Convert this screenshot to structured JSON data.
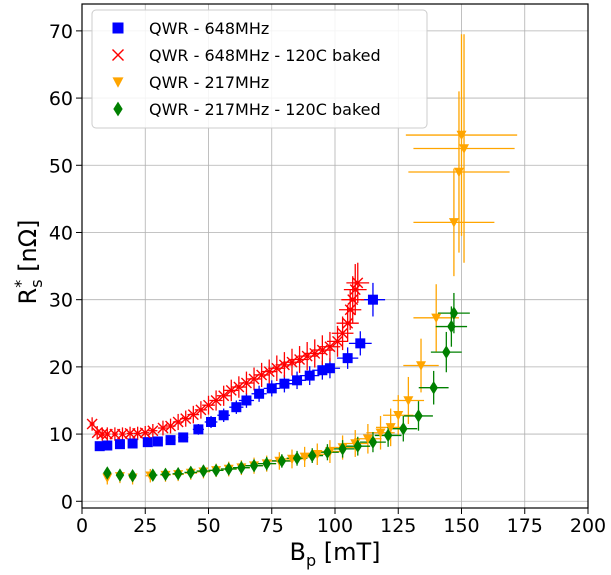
{
  "chart_data": {
    "type": "scatter",
    "title": "",
    "xlabel": "B",
    "xlabel_sub": "p",
    "xlabel_unit": " [mT]",
    "ylabel": "R",
    "ylabel_sup": "*",
    "ylabel_sub": "s",
    "ylabel_unit": " [nΩ]",
    "xlim": [
      0,
      200
    ],
    "ylim": [
      -1,
      74
    ],
    "xticks": [
      0,
      25,
      50,
      75,
      100,
      125,
      150,
      175,
      200
    ],
    "yticks": [
      0,
      10,
      20,
      30,
      40,
      50,
      60,
      70
    ],
    "grid": true,
    "legend_position": "top-left",
    "series": [
      {
        "name": "QWR - 648MHz",
        "color": "#0000ff",
        "marker": "square",
        "points": [
          {
            "x": 7,
            "y": 8.2,
            "xerr": 1.2,
            "yerr": 0.6
          },
          {
            "x": 10,
            "y": 8.3,
            "xerr": 1.2,
            "yerr": 0.6
          },
          {
            "x": 15,
            "y": 8.5,
            "xerr": 1.5,
            "yerr": 0.6
          },
          {
            "x": 20,
            "y": 8.6,
            "xerr": 1.5,
            "yerr": 0.6
          },
          {
            "x": 26,
            "y": 8.8,
            "xerr": 1.8,
            "yerr": 0.6
          },
          {
            "x": 30,
            "y": 8.9,
            "xerr": 1.8,
            "yerr": 0.6
          },
          {
            "x": 35,
            "y": 9.1,
            "xerr": 2,
            "yerr": 0.7
          },
          {
            "x": 40,
            "y": 9.5,
            "xerr": 2,
            "yerr": 0.7
          },
          {
            "x": 46,
            "y": 10.7,
            "xerr": 2.2,
            "yerr": 0.8
          },
          {
            "x": 51,
            "y": 11.8,
            "xerr": 2.5,
            "yerr": 0.9
          },
          {
            "x": 56,
            "y": 12.8,
            "xerr": 2.5,
            "yerr": 1
          },
          {
            "x": 61,
            "y": 14,
            "xerr": 2.8,
            "yerr": 1
          },
          {
            "x": 65,
            "y": 15,
            "xerr": 3,
            "yerr": 1.1
          },
          {
            "x": 70,
            "y": 16,
            "xerr": 3,
            "yerr": 1.2
          },
          {
            "x": 75,
            "y": 16.8,
            "xerr": 3.2,
            "yerr": 1.2
          },
          {
            "x": 80,
            "y": 17.5,
            "xerr": 3.5,
            "yerr": 1.3
          },
          {
            "x": 85,
            "y": 18,
            "xerr": 3.5,
            "yerr": 1.3
          },
          {
            "x": 90,
            "y": 18.7,
            "xerr": 3.8,
            "yerr": 1.4
          },
          {
            "x": 95,
            "y": 19.5,
            "xerr": 4,
            "yerr": 1.4
          },
          {
            "x": 98,
            "y": 19.8,
            "xerr": 4,
            "yerr": 1.5
          },
          {
            "x": 105,
            "y": 21.3,
            "xerr": 4.2,
            "yerr": 1.6
          },
          {
            "x": 110,
            "y": 23.5,
            "xerr": 4.5,
            "yerr": 1.8
          },
          {
            "x": 115,
            "y": 30,
            "xerr": 4.8,
            "yerr": 2.5
          }
        ]
      },
      {
        "name": "QWR - 648MHz  - 120C baked",
        "color": "#ff0000",
        "marker": "x",
        "points": [
          {
            "x": 4,
            "y": 11.5,
            "xerr": 1,
            "yerr": 1
          },
          {
            "x": 6,
            "y": 10.2,
            "xerr": 1,
            "yerr": 1
          },
          {
            "x": 8,
            "y": 10,
            "xerr": 1,
            "yerr": 1
          },
          {
            "x": 10,
            "y": 10,
            "xerr": 1.2,
            "yerr": 1
          },
          {
            "x": 13,
            "y": 10,
            "xerr": 1.2,
            "yerr": 1
          },
          {
            "x": 16,
            "y": 10,
            "xerr": 1.3,
            "yerr": 1
          },
          {
            "x": 19,
            "y": 10.1,
            "xerr": 1.4,
            "yerr": 1
          },
          {
            "x": 22,
            "y": 10.1,
            "xerr": 1.5,
            "yerr": 1
          },
          {
            "x": 25,
            "y": 10.2,
            "xerr": 1.6,
            "yerr": 1
          },
          {
            "x": 28,
            "y": 10.5,
            "xerr": 1.8,
            "yerr": 1
          },
          {
            "x": 32,
            "y": 10.9,
            "xerr": 2,
            "yerr": 1.1
          },
          {
            "x": 35,
            "y": 11.2,
            "xerr": 2,
            "yerr": 1.1
          },
          {
            "x": 38,
            "y": 11.8,
            "xerr": 2.1,
            "yerr": 1.2
          },
          {
            "x": 41,
            "y": 12.3,
            "xerr": 2.2,
            "yerr": 1.2
          },
          {
            "x": 44,
            "y": 12.9,
            "xerr": 2.3,
            "yerr": 1.3
          },
          {
            "x": 47,
            "y": 13.6,
            "xerr": 2.4,
            "yerr": 1.3
          },
          {
            "x": 50,
            "y": 14.3,
            "xerr": 2.5,
            "yerr": 1.4
          },
          {
            "x": 53,
            "y": 15,
            "xerr": 2.6,
            "yerr": 1.5
          },
          {
            "x": 56,
            "y": 15.7,
            "xerr": 2.7,
            "yerr": 1.5
          },
          {
            "x": 59,
            "y": 16.5,
            "xerr": 2.8,
            "yerr": 1.6
          },
          {
            "x": 62,
            "y": 17,
            "xerr": 2.9,
            "yerr": 1.6
          },
          {
            "x": 65,
            "y": 17.6,
            "xerr": 3,
            "yerr": 1.7
          },
          {
            "x": 68,
            "y": 18.2,
            "xerr": 3.1,
            "yerr": 1.7
          },
          {
            "x": 71,
            "y": 18.8,
            "xerr": 3.2,
            "yerr": 1.8
          },
          {
            "x": 74,
            "y": 19.3,
            "xerr": 3.3,
            "yerr": 1.8
          },
          {
            "x": 77,
            "y": 19.8,
            "xerr": 3.4,
            "yerr": 1.9
          },
          {
            "x": 80,
            "y": 20.3,
            "xerr": 3.5,
            "yerr": 1.9
          },
          {
            "x": 83,
            "y": 20.7,
            "xerr": 3.6,
            "yerr": 2
          },
          {
            "x": 86,
            "y": 21.1,
            "xerr": 3.7,
            "yerr": 2
          },
          {
            "x": 89,
            "y": 21.6,
            "xerr": 3.8,
            "yerr": 2.1
          },
          {
            "x": 92,
            "y": 22,
            "xerr": 3.9,
            "yerr": 2.1
          },
          {
            "x": 95,
            "y": 22.5,
            "xerr": 4,
            "yerr": 2.2
          },
          {
            "x": 98,
            "y": 23,
            "xerr": 4.1,
            "yerr": 2.2
          },
          {
            "x": 101,
            "y": 23.8,
            "xerr": 4.2,
            "yerr": 2.3
          },
          {
            "x": 103,
            "y": 25,
            "xerr": 4.3,
            "yerr": 2.5
          },
          {
            "x": 105,
            "y": 26.5,
            "xerr": 4.4,
            "yerr": 2.7
          },
          {
            "x": 106,
            "y": 28.5,
            "xerr": 4.4,
            "yerr": 3
          },
          {
            "x": 107,
            "y": 30,
            "xerr": 4.5,
            "yerr": 3.5
          },
          {
            "x": 108,
            "y": 31.5,
            "xerr": 4.5,
            "yerr": 3.8
          },
          {
            "x": 109,
            "y": 32.5,
            "xerr": 4.5,
            "yerr": 3
          }
        ]
      },
      {
        "name": "QWR - 217MHz",
        "color": "#ffa500",
        "marker": "triangle-down",
        "points": [
          {
            "x": 10,
            "y": 3.5,
            "xerr": 1,
            "yerr": 1
          },
          {
            "x": 15,
            "y": 3.7,
            "xerr": 1.2,
            "yerr": 1
          },
          {
            "x": 20,
            "y": 3.5,
            "xerr": 1.4,
            "yerr": 1
          },
          {
            "x": 27,
            "y": 3.8,
            "xerr": 1.8,
            "yerr": 1
          },
          {
            "x": 33,
            "y": 3.9,
            "xerr": 2,
            "yerr": 1
          },
          {
            "x": 38,
            "y": 4,
            "xerr": 2.2,
            "yerr": 1
          },
          {
            "x": 43,
            "y": 4.2,
            "xerr": 2.5,
            "yerr": 1
          },
          {
            "x": 48,
            "y": 4.4,
            "xerr": 2.7,
            "yerr": 1
          },
          {
            "x": 53,
            "y": 4.6,
            "xerr": 3,
            "yerr": 1
          },
          {
            "x": 58,
            "y": 4.8,
            "xerr": 3.2,
            "yerr": 1.1
          },
          {
            "x": 63,
            "y": 5,
            "xerr": 3.4,
            "yerr": 1.1
          },
          {
            "x": 68,
            "y": 5.3,
            "xerr": 3.6,
            "yerr": 1.2
          },
          {
            "x": 73,
            "y": 5.6,
            "xerr": 3.8,
            "yerr": 1.2
          },
          {
            "x": 78,
            "y": 6,
            "xerr": 4,
            "yerr": 1.3
          },
          {
            "x": 83,
            "y": 6.3,
            "xerr": 4.2,
            "yerr": 1.4
          },
          {
            "x": 88,
            "y": 6.6,
            "xerr": 4.4,
            "yerr": 1.5
          },
          {
            "x": 93,
            "y": 7,
            "xerr": 4.6,
            "yerr": 1.6
          },
          {
            "x": 98,
            "y": 7.4,
            "xerr": 4.8,
            "yerr": 1.7
          },
          {
            "x": 103,
            "y": 8,
            "xerr": 5,
            "yerr": 1.8
          },
          {
            "x": 108,
            "y": 8.6,
            "xerr": 5.2,
            "yerr": 2
          },
          {
            "x": 113,
            "y": 9.3,
            "xerr": 5.4,
            "yerr": 2.2
          },
          {
            "x": 118,
            "y": 10.2,
            "xerr": 5.6,
            "yerr": 2.5
          },
          {
            "x": 122,
            "y": 11,
            "xerr": 5.8,
            "yerr": 2.8
          },
          {
            "x": 125,
            "y": 12.8,
            "xerr": 6,
            "yerr": 3
          },
          {
            "x": 129,
            "y": 15,
            "xerr": 6.2,
            "yerr": 3.5
          },
          {
            "x": 134,
            "y": 20.2,
            "xerr": 7,
            "yerr": 4
          },
          {
            "x": 140,
            "y": 27.3,
            "xerr": 9,
            "yerr": 5
          },
          {
            "x": 147,
            "y": 41.5,
            "xerr": 16,
            "yerr": 8
          },
          {
            "x": 149,
            "y": 49,
            "xerr": 20,
            "yerr": 12
          },
          {
            "x": 150,
            "y": 54.5,
            "xerr": 22,
            "yerr": 15
          },
          {
            "x": 151,
            "y": 52.5,
            "xerr": 20,
            "yerr": 17
          }
        ]
      },
      {
        "name": "QWR - 217MHz  - 120C baked",
        "color": "#008000",
        "marker": "diamond",
        "points": [
          {
            "x": 10,
            "y": 4.2,
            "xerr": 1,
            "yerr": 0.8
          },
          {
            "x": 15,
            "y": 3.9,
            "xerr": 1.2,
            "yerr": 0.8
          },
          {
            "x": 20,
            "y": 3.8,
            "xerr": 1.4,
            "yerr": 0.8
          },
          {
            "x": 28,
            "y": 3.9,
            "xerr": 1.8,
            "yerr": 0.8
          },
          {
            "x": 33,
            "y": 4,
            "xerr": 2,
            "yerr": 0.8
          },
          {
            "x": 38,
            "y": 4.1,
            "xerr": 2.2,
            "yerr": 0.8
          },
          {
            "x": 43,
            "y": 4.3,
            "xerr": 2.5,
            "yerr": 0.8
          },
          {
            "x": 48,
            "y": 4.5,
            "xerr": 2.7,
            "yerr": 0.8
          },
          {
            "x": 53,
            "y": 4.6,
            "xerr": 2.9,
            "yerr": 0.8
          },
          {
            "x": 58,
            "y": 4.8,
            "xerr": 3.1,
            "yerr": 0.9
          },
          {
            "x": 63,
            "y": 5,
            "xerr": 3.3,
            "yerr": 0.9
          },
          {
            "x": 68,
            "y": 5.3,
            "xerr": 3.5,
            "yerr": 0.9
          },
          {
            "x": 73,
            "y": 5.6,
            "xerr": 3.7,
            "yerr": 1
          },
          {
            "x": 79,
            "y": 6,
            "xerr": 3.9,
            "yerr": 1
          },
          {
            "x": 85,
            "y": 6.4,
            "xerr": 4.1,
            "yerr": 1.1
          },
          {
            "x": 91,
            "y": 6.8,
            "xerr": 4.3,
            "yerr": 1.1
          },
          {
            "x": 97,
            "y": 7.3,
            "xerr": 4.5,
            "yerr": 1.2
          },
          {
            "x": 103,
            "y": 7.8,
            "xerr": 4.7,
            "yerr": 1.3
          },
          {
            "x": 109,
            "y": 8.2,
            "xerr": 4.9,
            "yerr": 1.4
          },
          {
            "x": 115,
            "y": 8.8,
            "xerr": 5.1,
            "yerr": 1.5
          },
          {
            "x": 121,
            "y": 9.8,
            "xerr": 5.3,
            "yerr": 1.7
          },
          {
            "x": 127,
            "y": 10.8,
            "xerr": 5.5,
            "yerr": 1.9
          },
          {
            "x": 133,
            "y": 12.7,
            "xerr": 5.7,
            "yerr": 2.2
          },
          {
            "x": 139,
            "y": 16.9,
            "xerr": 5.9,
            "yerr": 2.5
          },
          {
            "x": 144,
            "y": 22.2,
            "xerr": 6.1,
            "yerr": 3
          },
          {
            "x": 146,
            "y": 26,
            "xerr": 6.2,
            "yerr": 3
          },
          {
            "x": 147,
            "y": 28,
            "xerr": 6.3,
            "yerr": 3
          }
        ]
      }
    ]
  }
}
